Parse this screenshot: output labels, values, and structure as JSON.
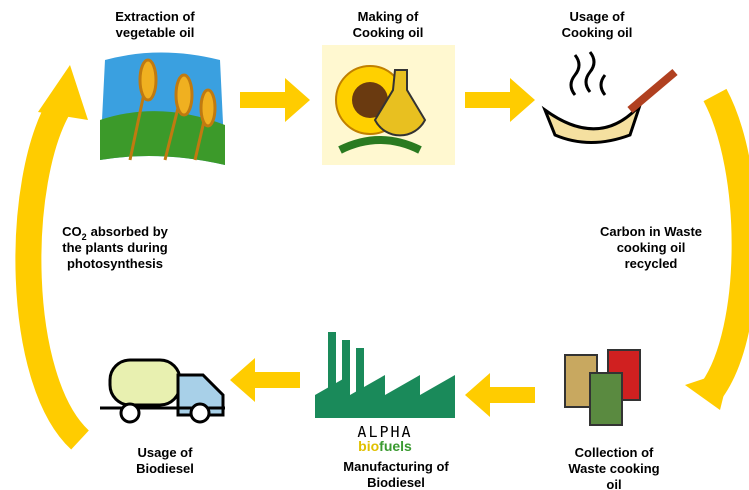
{
  "nodes": [
    {
      "label": [
        "Extraction of",
        "vegetable oil"
      ]
    },
    {
      "label": [
        "Making of",
        "Cooking oil"
      ]
    },
    {
      "label": [
        "Usage of",
        "Cooking oil"
      ]
    },
    {
      "label": [
        "Collection of",
        "Waste cooking",
        "oil"
      ]
    },
    {
      "label": [
        "Manufacturing of",
        "Biodiesel"
      ]
    },
    {
      "label": [
        "Usage of",
        "Biodiesel"
      ]
    }
  ],
  "edges": [
    {
      "label": [
        "Carbon in Waste",
        "cooking oil",
        "recycled"
      ]
    },
    {
      "label": {
        "first_line": {
          "text": "CO",
          "subscript": "2",
          "rest": "absorbed by"
        },
        "lines": [
          "the plants during",
          "photosynthesis"
        ]
      }
    }
  ],
  "logo": {
    "name": "ALPHA",
    "tag_a": "bio",
    "tag_b": "fuels"
  }
}
